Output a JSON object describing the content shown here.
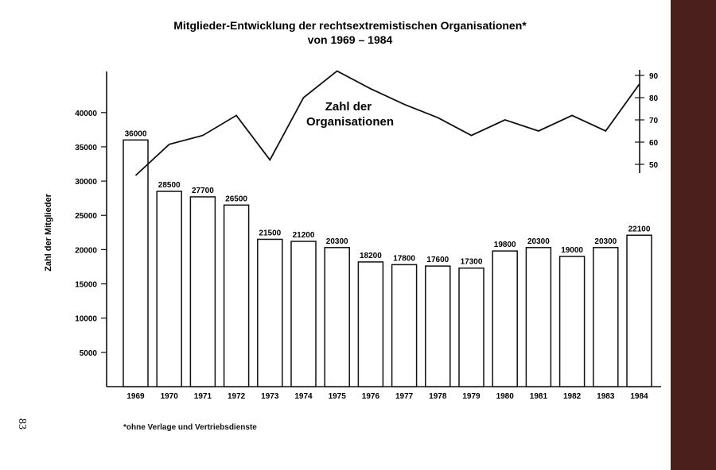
{
  "page": {
    "number": "83"
  },
  "footnote": "*ohne Verlage und Vertriebsdienste",
  "colors": {
    "ink": "#111111",
    "background": "#ffffff",
    "binding": "#4a1f1c"
  },
  "chart_data": {
    "type": "bar",
    "title": "Mitglieder-Entwicklung der rechtsextremistischen Organisationen*",
    "subtitle": "von 1969 – 1984",
    "ylabel": "Zahl der Mitglieder",
    "xlabel": "",
    "grid": false,
    "categories": [
      "1969",
      "1970",
      "1971",
      "1972",
      "1973",
      "1974",
      "1975",
      "1976",
      "1977",
      "1978",
      "1979",
      "1980",
      "1981",
      "1982",
      "1983",
      "1984"
    ],
    "series": [
      {
        "name": "Zahl der Mitglieder",
        "type": "bar",
        "axis": "left",
        "values": [
          36000,
          28500,
          27700,
          26500,
          21500,
          21200,
          20300,
          18200,
          17800,
          17600,
          17300,
          19800,
          20300,
          19000,
          20300,
          22100
        ],
        "labels": [
          "36000",
          "28500",
          "27700",
          "26500",
          "21500",
          "21200",
          "20300",
          "18200",
          "17800",
          "17600",
          "17300",
          "19800",
          "20300",
          "19000",
          "20300",
          "22100"
        ]
      },
      {
        "name": "Zahl der Organisationen",
        "name_lines": [
          "Zahl der",
          "Organisationen"
        ],
        "type": "line",
        "axis": "right",
        "values": [
          45,
          59,
          63,
          72,
          52,
          80,
          92,
          84,
          77,
          71,
          63,
          70,
          65,
          72,
          65,
          86
        ]
      }
    ],
    "y_left": {
      "ylim": [
        0,
        46000
      ],
      "ticks": [
        5000,
        10000,
        15000,
        20000,
        25000,
        30000,
        35000,
        40000
      ],
      "tick_labels": [
        "5000",
        "10000",
        "15000",
        "20000",
        "25000",
        "30000",
        "35000",
        "40000"
      ]
    },
    "y_right": {
      "ylim": [
        44,
        93
      ],
      "ticks": [
        50,
        60,
        70,
        80,
        90
      ],
      "tick_labels": [
        "50",
        "60",
        "70",
        "80",
        "90"
      ]
    }
  }
}
